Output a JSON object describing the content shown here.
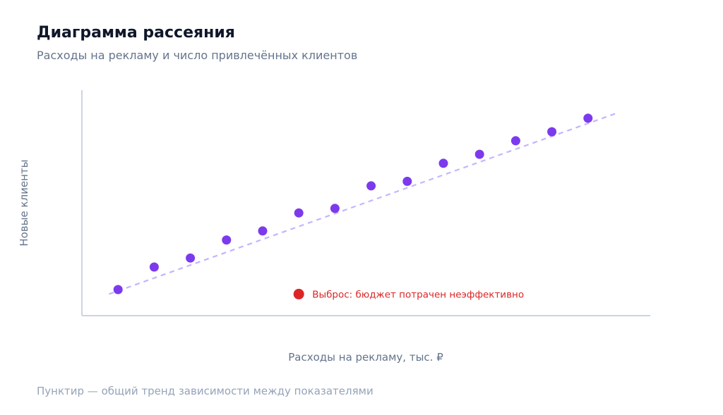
{
  "title": "Диаграмма рассеяния",
  "subtitle": "Расходы на рекламу и число привлечённых клиентов",
  "footnote": "Пунктир — общий тренд зависимости между показателями",
  "colors": {
    "point": "#7c3aed",
    "trend": "#c4b5fd",
    "outlier": "#dc2626",
    "axis": "#cbd5e1"
  },
  "chart_data": {
    "type": "scatter",
    "title": "Диаграмма рассеяния",
    "subtitle": "Расходы на рекламу и число привлечённых клиентов",
    "xlabel": "Расходы на рекламу, тыс. ₽",
    "ylabel": "Новые клиенты",
    "xlim": [
      0,
      15.7
    ],
    "ylim": [
      0,
      25
    ],
    "grid": false,
    "points": [
      {
        "x": 1,
        "y": 2.5
      },
      {
        "x": 2,
        "y": 5
      },
      {
        "x": 3,
        "y": 6
      },
      {
        "x": 4,
        "y": 8
      },
      {
        "x": 5,
        "y": 9
      },
      {
        "x": 6,
        "y": 11
      },
      {
        "x": 7,
        "y": 11.5
      },
      {
        "x": 8,
        "y": 14
      },
      {
        "x": 9,
        "y": 14.5
      },
      {
        "x": 10,
        "y": 16.5
      },
      {
        "x": 11,
        "y": 17.5
      },
      {
        "x": 12,
        "y": 19
      },
      {
        "x": 13,
        "y": 20
      },
      {
        "x": 14,
        "y": 21.5
      }
    ],
    "trend": {
      "x": [
        0.75,
        14.75
      ],
      "y": [
        2,
        22
      ]
    },
    "outlier": {
      "x": 6,
      "y": 2,
      "label": "Выброс: бюджет потрачен неэффективно"
    }
  }
}
